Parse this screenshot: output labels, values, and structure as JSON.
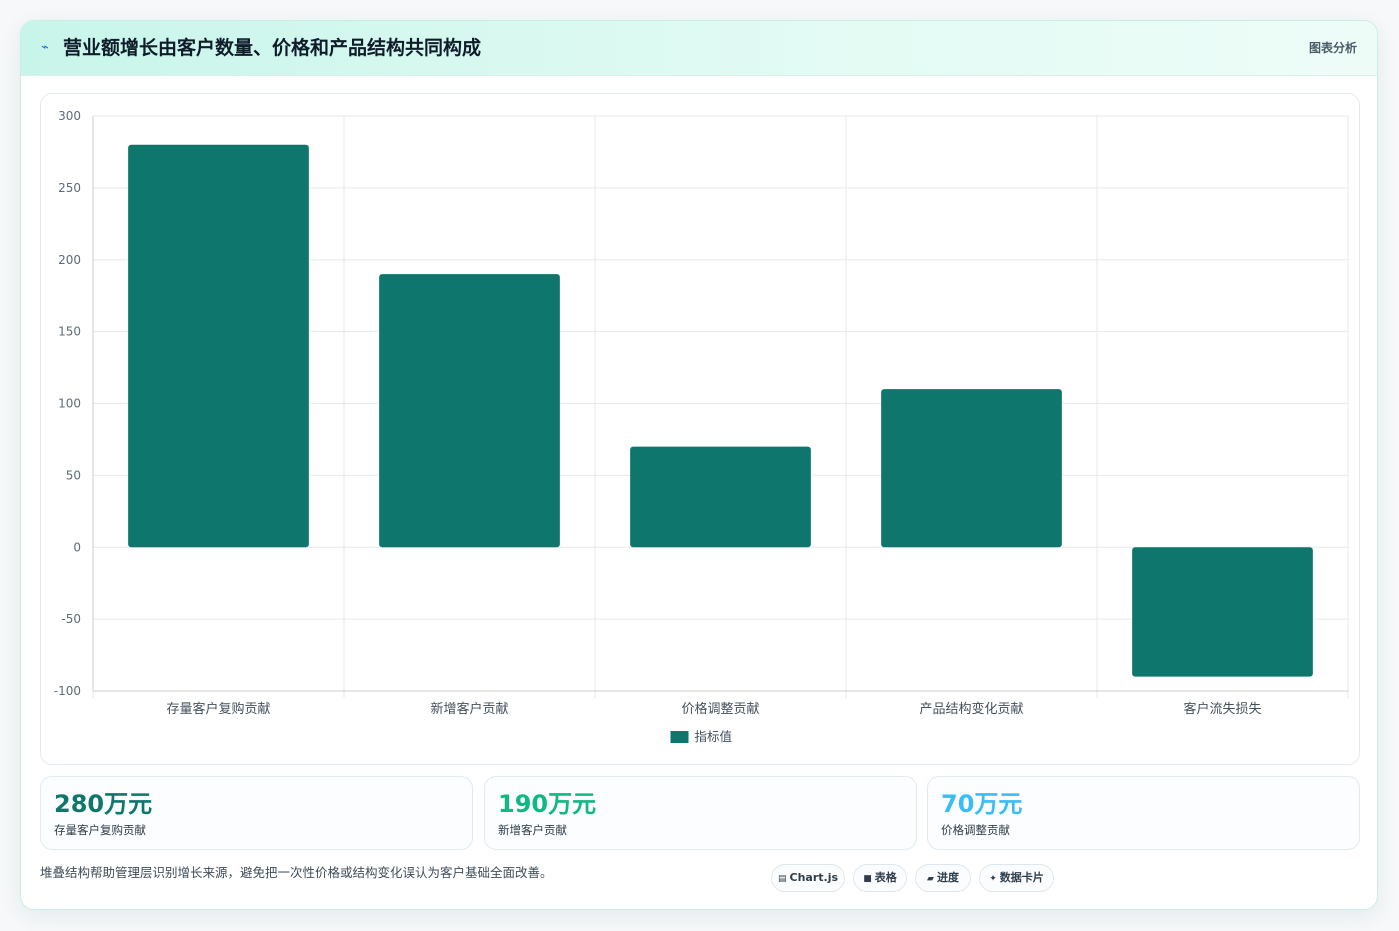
{
  "header": {
    "icon": "trend-icon",
    "title": "营业额增长由客户数量、价格和产品结构共同构成",
    "tag": "图表分析"
  },
  "chart_data": {
    "type": "bar",
    "categories": [
      "存量客户复购贡献",
      "新增客户贡献",
      "价格调整贡献",
      "产品结构变化贡献",
      "客户流失损失"
    ],
    "series": [
      {
        "name": "指标值",
        "values": [
          280,
          190,
          70,
          110,
          -90
        ]
      }
    ],
    "ylim": [
      -100,
      300
    ],
    "yticks": [
      300,
      250,
      200,
      150,
      100,
      50,
      0,
      -50,
      -100
    ],
    "grid": true,
    "legend": "bottom",
    "colors": {
      "bar": "#0f766e",
      "grid": "#e6e9ec",
      "axis": "#c8ccd0",
      "tick_text": "#5f6b76"
    }
  },
  "kpis": [
    {
      "value": "280万元",
      "label": "存量客户复购贡献",
      "color": "#0f766e"
    },
    {
      "value": "190万元",
      "label": "新增客户贡献",
      "color": "#10b981"
    },
    {
      "value": "70万元",
      "label": "价格调整贡献",
      "color": "#38bdf8"
    }
  ],
  "footnote": "堆叠结构帮助管理层识别增长来源，避免把一次性价格或结构变化误认为客户基础全面改善。",
  "chips": [
    {
      "icon": "chart-icon",
      "glyph": "▤",
      "label": "Chart.js"
    },
    {
      "icon": "table-icon",
      "glyph": "■",
      "label": "表格"
    },
    {
      "icon": "progress-icon",
      "glyph": "▰",
      "label": "进度"
    },
    {
      "icon": "card-icon",
      "glyph": "✦",
      "label": "数据卡片"
    }
  ]
}
